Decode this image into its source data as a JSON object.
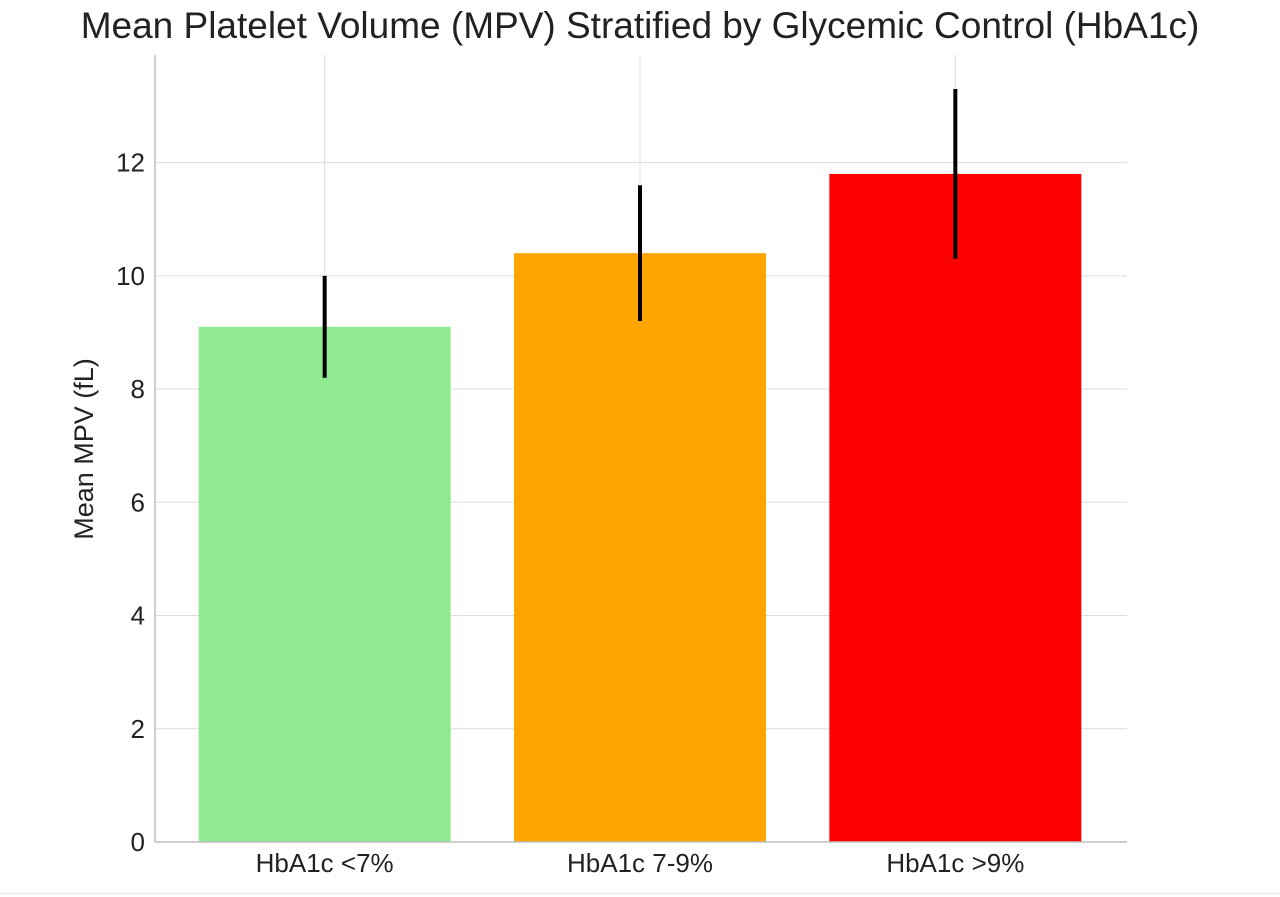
{
  "chart_data": {
    "type": "bar",
    "title": "Mean Platelet Volume (MPV) Stratified by Glycemic Control (HbA1c)",
    "xlabel": "",
    "ylabel": "Mean MPV (fL)",
    "ylim": [
      0,
      13.9
    ],
    "yticks": [
      0,
      2,
      4,
      6,
      8,
      10,
      12
    ],
    "grid": true,
    "categories": [
      "HbA1c <7%",
      "HbA1c 7-9%",
      "HbA1c >9%"
    ],
    "values": [
      9.1,
      10.4,
      11.8
    ],
    "error": [
      0.9,
      1.2,
      1.5
    ],
    "colors": [
      "#90ea8f",
      "#ffa500",
      "#ff0000"
    ]
  }
}
